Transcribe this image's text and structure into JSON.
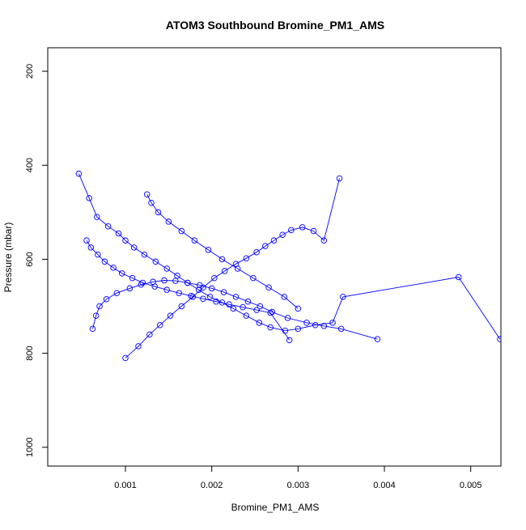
{
  "chart_data": {
    "type": "line",
    "title": "ATOM3 Southbound Bromine_PM1_AMS",
    "xlabel": "Bromine_PM1_AMS",
    "ylabel": "Pressure (mbar)",
    "xlim": [
      0.0001,
      0.00535
    ],
    "ylim": [
      1040,
      150
    ],
    "y_inverted": true,
    "x_ticks": [
      0.001,
      0.002,
      0.003,
      0.004,
      0.005
    ],
    "x_tick_labels": [
      "0.001",
      "0.002",
      "0.003",
      "0.004",
      "0.005"
    ],
    "y_ticks": [
      200,
      400,
      600,
      800,
      1000
    ],
    "y_tick_labels": [
      "200",
      "400",
      "600",
      "800",
      "1000"
    ],
    "grid": false,
    "legend": "none",
    "series_color": "#0000ff",
    "markers": "open-circle",
    "series": [
      {
        "x": [
          0.00046,
          0.00058,
          0.00067,
          0.0008,
          0.00092,
          0.001,
          0.0011,
          0.00122,
          0.00135,
          0.00148,
          0.0016,
          0.00172,
          0.00185,
          0.00198,
          0.00212,
          0.00225,
          0.0024,
          0.00255,
          0.00268,
          0.00285,
          0.003,
          0.0032,
          0.0034,
          0.00352,
          0.00486,
          0.00534
        ],
        "y": [
          418,
          470,
          510,
          530,
          545,
          560,
          575,
          590,
          605,
          620,
          635,
          650,
          665,
          680,
          692,
          705,
          720,
          735,
          745,
          752,
          748,
          740,
          735,
          680,
          638,
          770
        ]
      },
      {
        "x": [
          0.001,
          0.00115,
          0.00128,
          0.0014,
          0.00152,
          0.00165,
          0.00178,
          0.0019,
          0.00203,
          0.00215,
          0.00228,
          0.0024,
          0.00252,
          0.00262,
          0.00272,
          0.00282,
          0.00292,
          0.00305,
          0.00318,
          0.0033,
          0.00348
        ],
        "y": [
          810,
          785,
          760,
          740,
          720,
          700,
          680,
          660,
          640,
          625,
          610,
          598,
          585,
          572,
          560,
          548,
          538,
          532,
          540,
          560,
          428
        ]
      },
      {
        "x": [
          0.00062,
          0.00066,
          0.0007,
          0.00078,
          0.0009,
          0.00105,
          0.00118,
          0.00132,
          0.00145,
          0.00158,
          0.00172,
          0.00186,
          0.002,
          0.00214,
          0.00228,
          0.00242,
          0.00256,
          0.0027,
          0.00288,
          0.0031,
          0.0033,
          0.0035,
          0.00392
        ],
        "y": [
          748,
          720,
          700,
          685,
          672,
          662,
          654,
          648,
          645,
          646,
          650,
          655,
          662,
          670,
          680,
          690,
          700,
          712,
          725,
          735,
          742,
          748,
          770
        ]
      },
      {
        "x": [
          0.00055,
          0.0006,
          0.00068,
          0.00076,
          0.00086,
          0.00096,
          0.00108,
          0.0012,
          0.00134,
          0.00148,
          0.00162,
          0.00176,
          0.0019,
          0.00205,
          0.0022,
          0.00236,
          0.00252,
          0.00268,
          0.0029
        ],
        "y": [
          560,
          575,
          590,
          605,
          618,
          630,
          640,
          650,
          658,
          665,
          672,
          678,
          684,
          690,
          696,
          702,
          708,
          714,
          772
        ]
      },
      {
        "x": [
          0.00125,
          0.0013,
          0.00138,
          0.0015,
          0.00165,
          0.0018,
          0.00196,
          0.00212,
          0.0023,
          0.00248,
          0.00266,
          0.00284,
          0.003
        ],
        "y": [
          462,
          480,
          500,
          520,
          540,
          560,
          580,
          600,
          620,
          640,
          660,
          680,
          705
        ]
      }
    ]
  }
}
